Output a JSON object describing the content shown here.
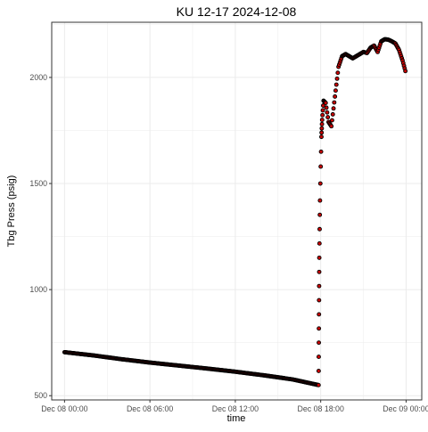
{
  "chart_data": {
    "type": "scatter",
    "title": "KU 12-17 2024-12-08",
    "xlabel": "time",
    "ylabel": "Tbg Press (psig)",
    "x_unit": "hours",
    "xlim": [
      -0.9,
      25.1
    ],
    "ylim": [
      480,
      2260
    ],
    "x_ticks": [
      {
        "value": 0,
        "label": "Dec 08 00:00"
      },
      {
        "value": 6,
        "label": "Dec 08 06:00"
      },
      {
        "value": 12,
        "label": "Dec 08 12:00"
      },
      {
        "value": 18,
        "label": "Dec 08 18:00"
      },
      {
        "value": 24,
        "label": "Dec 09 00:00"
      }
    ],
    "y_ticks": [
      500,
      1000,
      1500,
      2000
    ],
    "grid": true,
    "legend": "none",
    "colors": {
      "point_outline": "#000000",
      "point_fill": "#cc0000",
      "grid": "#ebebeb",
      "panel_border": "#333333"
    },
    "series": [
      {
        "x": [
          0,
          2,
          4,
          6,
          8,
          10,
          12,
          14,
          16,
          17.85,
          17.9,
          17.95,
          18.0,
          18.05,
          18.1,
          18.2,
          18.35,
          18.55,
          18.75,
          19.0,
          19.25,
          19.5,
          19.75,
          20.0,
          20.25,
          20.5,
          20.75,
          21.0,
          21.25,
          21.5,
          21.75,
          22.0,
          22.25,
          22.5,
          22.75,
          23.0,
          23.25,
          23.5,
          23.75,
          23.95
        ],
        "y": [
          705,
          690,
          672,
          656,
          642,
          628,
          613,
          596,
          577,
          550,
          1150,
          1420,
          1580,
          1720,
          1800,
          1890,
          1880,
          1790,
          1770,
          1910,
          2050,
          2100,
          2110,
          2100,
          2090,
          2100,
          2110,
          2120,
          2115,
          2140,
          2150,
          2120,
          2170,
          2180,
          2178,
          2170,
          2160,
          2130,
          2080,
          2030
        ]
      }
    ]
  }
}
